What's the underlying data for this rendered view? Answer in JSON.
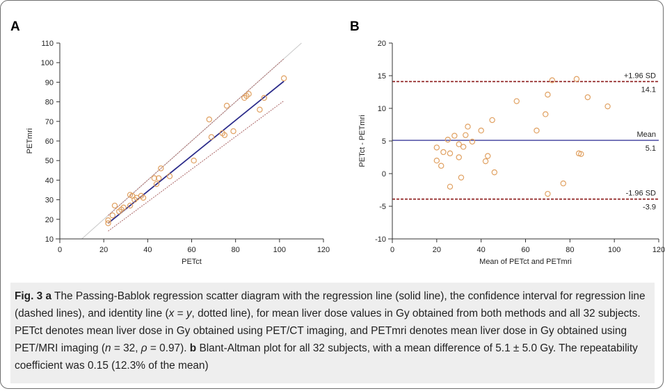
{
  "figure": {
    "panel_a_label": "A",
    "panel_b_label": "B",
    "caption": {
      "fig_label": "Fig. 3",
      "part_a_letter": "a",
      "part_a_text_1": "The Passing-Bablok regression scatter diagram with the regression line (solid line), the confidence interval for regression line (dashed lines), and identity line (",
      "eq_x": "x",
      "eq_mid": " = ",
      "eq_y": "y",
      "part_a_text_2": ", dotted line), for mean liver dose values in Gy obtained from both methods and all 32 subjects. PETct denotes mean liver dose in Gy obtained using PET/CT imaging, and PETmri denotes mean liver dose in Gy obtained using PET/MRI imaging (",
      "n_sym": "n",
      "n_val": " = 32, ",
      "rho_sym": "ρ",
      "rho_val": " = 0.97).",
      "part_b_letter": "b",
      "part_b_text": "Blant-Altman plot for all 32 subjects, with a mean difference of 5.1 ± 5.0 Gy. The repeatability coefficient was 0.15 (12.3% of the mean)"
    }
  },
  "chart_data": [
    {
      "type": "scatter",
      "panel": "A",
      "xlabel": "PETct",
      "ylabel": "PETmri",
      "xlim": [
        0,
        120
      ],
      "ylim": [
        10,
        110
      ],
      "xticks": [
        0,
        20,
        40,
        60,
        80,
        100,
        120
      ],
      "yticks": [
        10,
        20,
        30,
        40,
        50,
        60,
        70,
        80,
        90,
        100,
        110
      ],
      "grid": false,
      "marker_color": "#e0a060",
      "points": [
        [
          22,
          18
        ],
        [
          22,
          19.5
        ],
        [
          24,
          22
        ],
        [
          25,
          27
        ],
        [
          27,
          24
        ],
        [
          28,
          25
        ],
        [
          29,
          26
        ],
        [
          32,
          32.5
        ],
        [
          32,
          27
        ],
        [
          33,
          32
        ],
        [
          34,
          30
        ],
        [
          35,
          31
        ],
        [
          37,
          32
        ],
        [
          38,
          31
        ],
        [
          43,
          41
        ],
        [
          44,
          38
        ],
        [
          45,
          41
        ],
        [
          46,
          46
        ],
        [
          50,
          42
        ],
        [
          61,
          50
        ],
        [
          68,
          71
        ],
        [
          69,
          62
        ],
        [
          74,
          64
        ],
        [
          75,
          63
        ],
        [
          76,
          78
        ],
        [
          79,
          65
        ],
        [
          84,
          82
        ],
        [
          85,
          83
        ],
        [
          86,
          84
        ],
        [
          91,
          76
        ],
        [
          93,
          82
        ],
        [
          102,
          92
        ]
      ],
      "lines": {
        "regression": {
          "x": [
            22,
            102
          ],
          "y": [
            18,
            90.5
          ],
          "color": "#2b2b8a"
        },
        "ci_upper": {
          "x": [
            22,
            102
          ],
          "y": [
            22,
            102
          ],
          "color": "#b07070"
        },
        "ci_lower": {
          "x": [
            22,
            102
          ],
          "y": [
            14,
            80.5
          ],
          "color": "#b07070"
        },
        "identity": {
          "x": [
            10,
            110
          ],
          "y": [
            10,
            110
          ],
          "color": "#c8c8c8"
        }
      }
    },
    {
      "type": "scatter",
      "panel": "B",
      "xlabel": "Mean of PETct and PETmri",
      "ylabel": "PETct - PETmri",
      "xlim": [
        0,
        120
      ],
      "ylim": [
        -10,
        20
      ],
      "xticks": [
        0,
        20,
        40,
        60,
        80,
        100,
        120
      ],
      "yticks": [
        -10,
        -5,
        0,
        5,
        10,
        15,
        20
      ],
      "grid": false,
      "marker_color": "#e0a060",
      "points": [
        [
          20,
          4
        ],
        [
          20,
          2
        ],
        [
          22,
          1.2
        ],
        [
          23,
          3.3
        ],
        [
          25,
          5.2
        ],
        [
          26,
          3.1
        ],
        [
          26,
          -2
        ],
        [
          28,
          5.8
        ],
        [
          30,
          2.5
        ],
        [
          30,
          4.5
        ],
        [
          31,
          -0.6
        ],
        [
          32,
          4.1
        ],
        [
          33,
          5.9
        ],
        [
          34,
          7.2
        ],
        [
          36,
          4.9
        ],
        [
          40,
          6.6
        ],
        [
          42,
          1.9
        ],
        [
          43,
          2.7
        ],
        [
          45,
          8.2
        ],
        [
          46,
          0.2
        ],
        [
          56,
          11.1
        ],
        [
          65,
          6.6
        ],
        [
          69,
          9.1
        ],
        [
          70,
          12.1
        ],
        [
          70,
          -3.1
        ],
        [
          72,
          14.3
        ],
        [
          77,
          -1.5
        ],
        [
          83,
          14.5
        ],
        [
          84,
          3.1
        ],
        [
          85,
          3
        ],
        [
          88,
          11.7
        ],
        [
          97,
          10.3
        ]
      ],
      "reference_lines": [
        {
          "value": 14.1,
          "label": "+1.96 SD",
          "value_label": "14.1",
          "style": "dashed",
          "color": "#8b1a1a"
        },
        {
          "value": 5.1,
          "label": "Mean",
          "value_label": "5.1",
          "style": "solid",
          "color": "#3a3a9a"
        },
        {
          "value": -3.9,
          "label": "-1.96 SD",
          "value_label": "-3.9",
          "style": "dashed",
          "color": "#8b1a1a"
        }
      ]
    }
  ]
}
